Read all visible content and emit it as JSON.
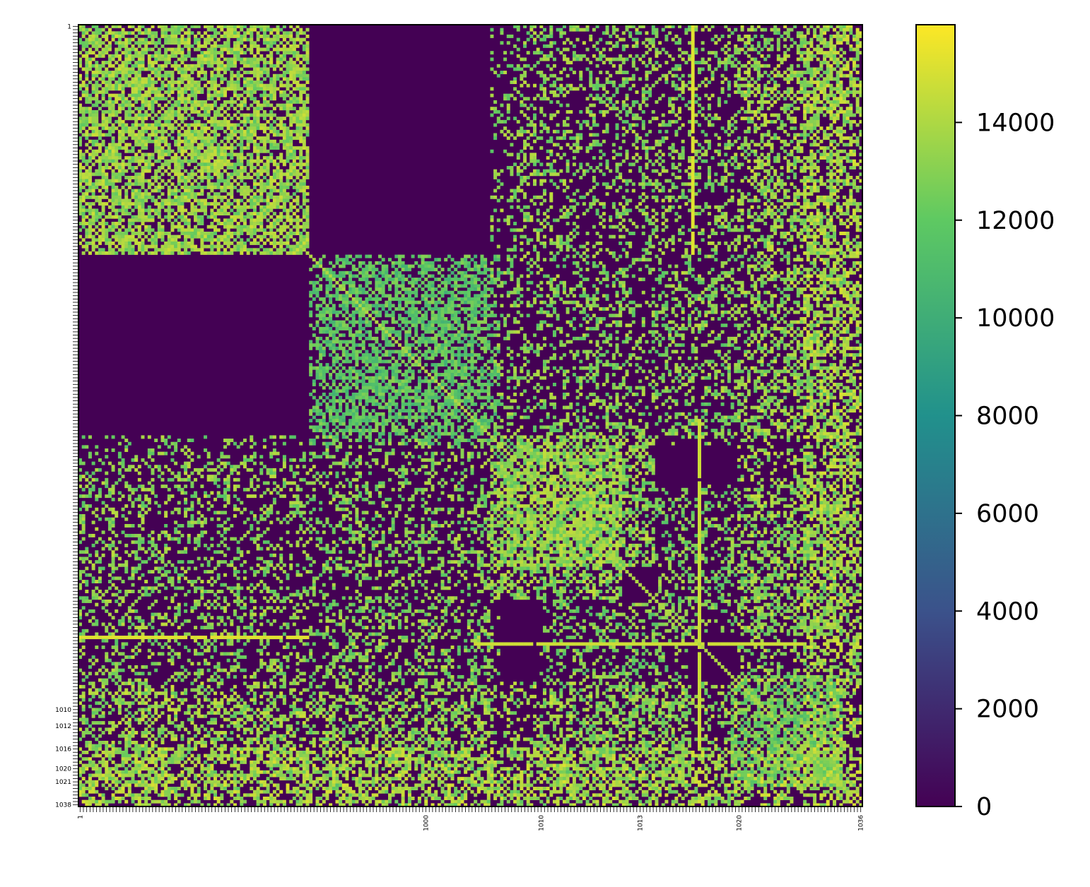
{
  "chart_data": {
    "type": "heatmap",
    "title": "",
    "xlabel": "",
    "ylabel": "",
    "rows": 238,
    "cols": 238,
    "colormap": "viridis",
    "colormap_stops": [
      "#440154",
      "#3b528b",
      "#21918c",
      "#5ec962",
      "#fde725"
    ],
    "value_range": [
      0,
      16000
    ],
    "background_value": 0,
    "colorbar": {
      "ticks": [
        0,
        2000,
        4000,
        6000,
        8000,
        10000,
        12000,
        14000
      ],
      "tick_labels": [
        "0",
        "2000",
        "4000",
        "6000",
        "8000",
        "10000",
        "12000",
        "14000"
      ]
    },
    "y_tick_labels_visible": [
      "1",
      "1010",
      "1012",
      "1016",
      "1020",
      "1021",
      "1038"
    ],
    "x_tick_labels_visible": [
      "1",
      "1000",
      "1010",
      "1013",
      "1020",
      "1036"
    ],
    "blocks": [
      {
        "r0": 0,
        "r1": 70,
        "c0": 0,
        "c1": 70,
        "density": 0.45,
        "level": 14800
      },
      {
        "r0": 70,
        "r1": 125,
        "c0": 72,
        "c1": 128,
        "density": 0.4,
        "level": 13200
      },
      {
        "r0": 125,
        "r1": 165,
        "c0": 128,
        "c1": 175,
        "density": 0.55,
        "level": 14600
      },
      {
        "r0": 140,
        "r1": 185,
        "c0": 175,
        "c1": 232,
        "density": 0.3,
        "level": 14200
      },
      {
        "r0": 198,
        "r1": 232,
        "c0": 198,
        "c1": 232,
        "density": 0.45,
        "level": 13800
      },
      {
        "r0": 0,
        "r1": 70,
        "c0": 130,
        "c1": 232,
        "density": 0.18,
        "level": 14500
      },
      {
        "r0": 70,
        "r1": 125,
        "c0": 130,
        "c1": 232,
        "density": 0.2,
        "level": 14300
      },
      {
        "r0": 125,
        "r1": 200,
        "c0": 0,
        "c1": 128,
        "density": 0.15,
        "level": 14500
      },
      {
        "r0": 200,
        "r1": 238,
        "c0": 0,
        "c1": 200,
        "density": 0.28,
        "level": 14900
      },
      {
        "r0": 0,
        "r1": 238,
        "c0": 220,
        "c1": 238,
        "density": 0.35,
        "level": 15200
      }
    ],
    "lines": [
      {
        "row": 186,
        "c0": 0,
        "c1": 70,
        "level": 15300
      },
      {
        "row": 188,
        "c0": 120,
        "c1": 220,
        "level": 14800
      },
      {
        "col": 186,
        "r0": 0,
        "r1": 60,
        "level": 15000
      },
      {
        "col": 188,
        "r0": 120,
        "r1": 220,
        "level": 14800
      }
    ],
    "diagonal_level": 14000
  }
}
